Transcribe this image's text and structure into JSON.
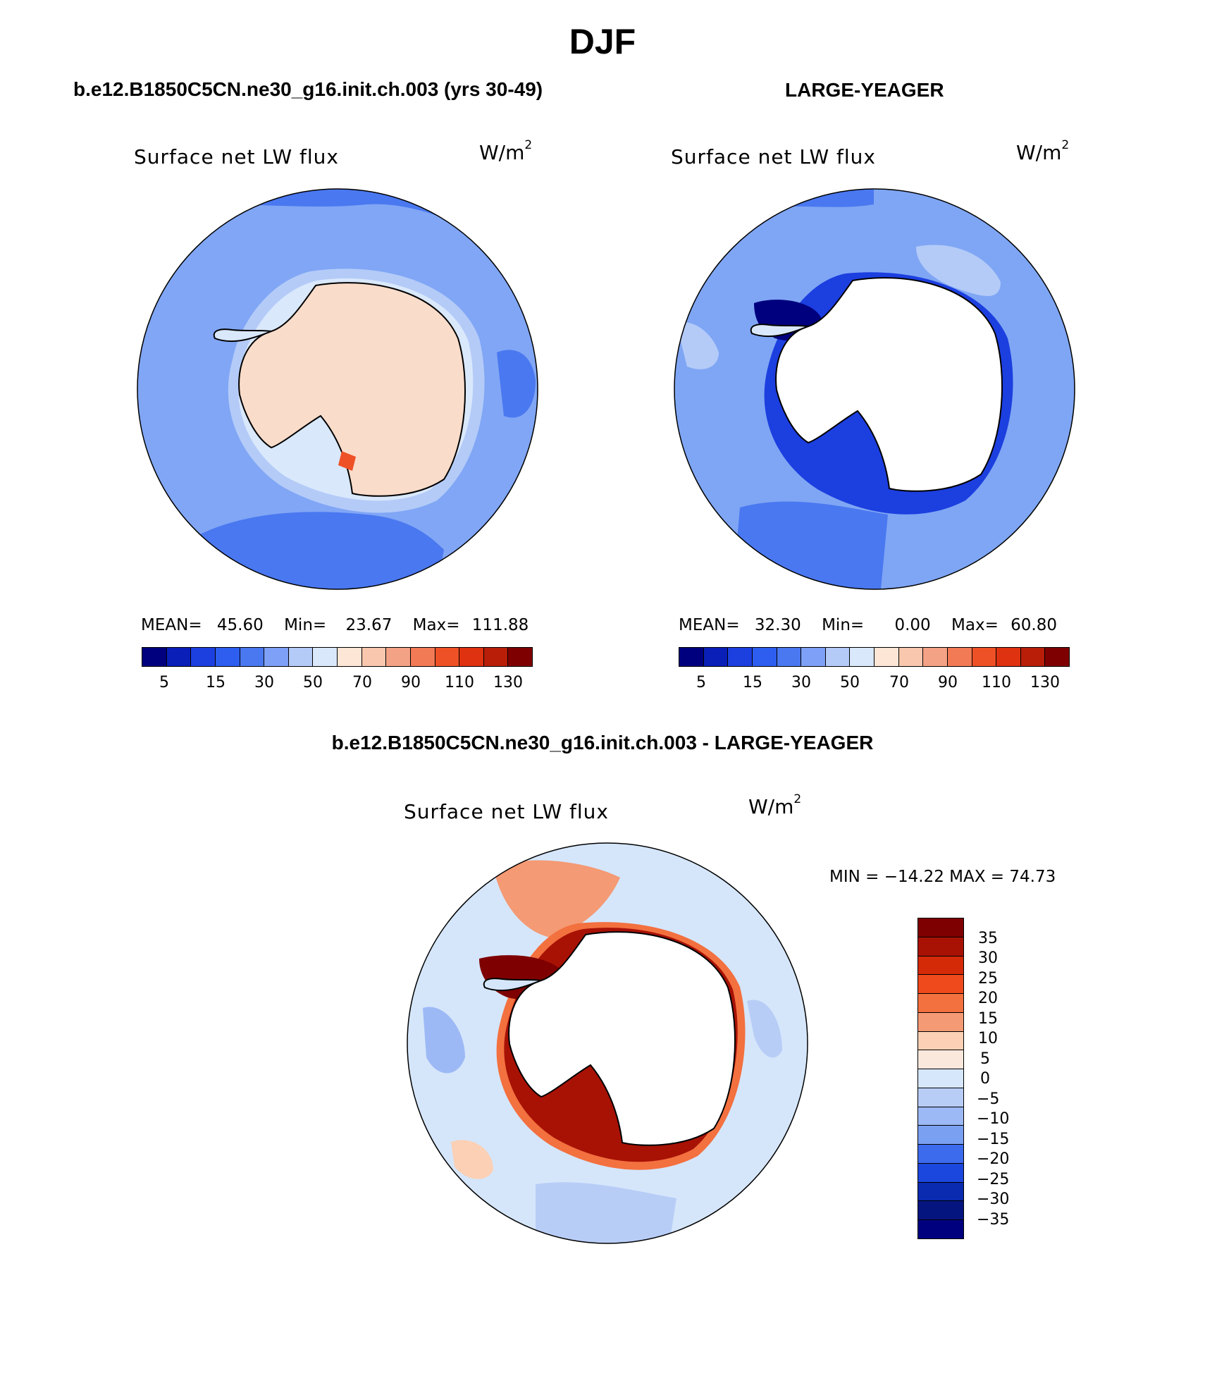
{
  "main_title": "DJF",
  "colors": {
    "abs_scale": [
      "#00007f",
      "#0a1fb8",
      "#1c3fe0",
      "#2d5ef0",
      "#4a78f0",
      "#7ea0f6",
      "#b4cbf8",
      "#d9e8fb",
      "#fde6d6",
      "#f8c7ad",
      "#f4a285",
      "#f27a55",
      "#ef5126",
      "#de3210",
      "#b81e08",
      "#7f0000"
    ],
    "diff_scale": [
      "#7f0000",
      "#a81205",
      "#d42a08",
      "#ef4a1c",
      "#f3703f",
      "#f49a74",
      "#fbd0b5",
      "#fbe8dc",
      "#d6e6fb",
      "#b8cdf6",
      "#9db9f5",
      "#7aa0f2",
      "#3d6bee",
      "#1c47de",
      "#0a2bb0",
      "#05157f",
      "#00007f"
    ],
    "ocean_a": "#80a6f5",
    "ocean_b": "#7fa6f4",
    "ocean_diff": "#d5e6fb",
    "land_a": "#fadccb",
    "coast": "#000000"
  },
  "panels": [
    {
      "id": "left",
      "title": "b.e12.B1850C5CN.ne30_g16.init.ch.003 (yrs 30-49)",
      "variable": "Surface net LW flux",
      "units": "W/m",
      "units_sup": "2",
      "stats": {
        "mean_label": "MEAN=",
        "mean": "45.60",
        "min_label": "Min=",
        "min": "23.67",
        "max_label": "Max=",
        "max": "111.88"
      }
    },
    {
      "id": "right",
      "title": "LARGE-YEAGER",
      "variable": "Surface net LW flux",
      "units": "W/m",
      "units_sup": "2",
      "stats": {
        "mean_label": "MEAN=",
        "mean": "32.30",
        "min_label": "Min=",
        "min": "0.00",
        "max_label": "Max=",
        "max": "60.80"
      }
    },
    {
      "id": "diff",
      "title": "b.e12.B1850C5CN.ne30_g16.init.ch.003 - LARGE-YEAGER",
      "variable": "Surface net LW flux",
      "units": "W/m",
      "units_sup": "2",
      "minmax_text": "MIN = −14.22 MAX =  74.73"
    }
  ],
  "chart_data": [
    {
      "type": "heatmap",
      "title": "b.e12.B1850C5CN.ne30_g16.init.ch.003 (yrs 30-49)",
      "variable": "Surface net LW flux",
      "units": "W/m2",
      "projection": "south polar stereographic",
      "colorbar_tick_labels": [
        "5",
        "15",
        "30",
        "50",
        "70",
        "90",
        "110",
        "130"
      ],
      "mean": 45.6,
      "min": 23.67,
      "max": 111.88
    },
    {
      "type": "heatmap",
      "title": "LARGE-YEAGER",
      "variable": "Surface net LW flux",
      "units": "W/m2",
      "projection": "south polar stereographic",
      "colorbar_tick_labels": [
        "5",
        "15",
        "30",
        "50",
        "70",
        "90",
        "110",
        "130"
      ],
      "mean": 32.3,
      "min": 0.0,
      "max": 60.8
    },
    {
      "type": "heatmap",
      "title": "b.e12.B1850C5CN.ne30_g16.init.ch.003 - LARGE-YEAGER",
      "variable": "Surface net LW flux",
      "units": "W/m2",
      "projection": "south polar stereographic",
      "colorbar_tick_labels": [
        "35",
        "30",
        "25",
        "20",
        "15",
        "10",
        "5",
        "0",
        "−5",
        "−10",
        "−15",
        "−20",
        "−25",
        "−30",
        "−35"
      ],
      "min": -14.22,
      "max": 74.73
    }
  ]
}
